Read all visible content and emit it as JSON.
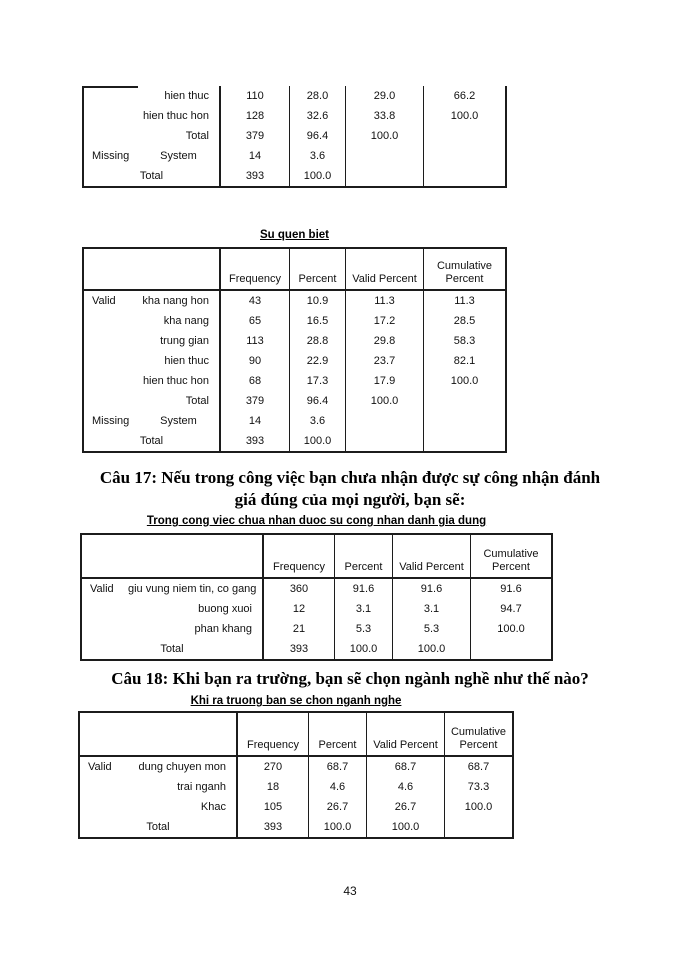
{
  "page_number": "43",
  "column_headers": [
    "Frequency",
    "Percent",
    "Valid Percent",
    "Cumulative Percent"
  ],
  "headings": {
    "cau17_line1": "Câu 17: Nếu trong công việc bạn chưa nhận được sự công nhận đánh",
    "cau17_line2": "giá đúng của mọi người, bạn sẽ:",
    "cau18": "Câu 18: Khi bạn ra trường, bạn sẽ chọn ngành nghề như thế nào?"
  },
  "tables": [
    {
      "title": "",
      "rows": [
        {
          "group": "",
          "label": "hien thuc",
          "values": [
            "110",
            "28.0",
            "29.0",
            "66.2"
          ]
        },
        {
          "group": "",
          "label": "hien thuc hon",
          "values": [
            "128",
            "32.6",
            "33.8",
            "100.0"
          ]
        },
        {
          "group": "",
          "label": "Total",
          "values": [
            "379",
            "96.4",
            "100.0",
            ""
          ]
        },
        {
          "group": "Missing",
          "label": "System",
          "center_label": true,
          "values": [
            "14",
            "3.6",
            "",
            ""
          ]
        },
        {
          "group": "",
          "label": "Total",
          "span": true,
          "values": [
            "393",
            "100.0",
            "",
            ""
          ]
        }
      ]
    },
    {
      "title": "Su quen biet",
      "rows": [
        {
          "group": "Valid",
          "label": "kha nang hon",
          "values": [
            "43",
            "10.9",
            "11.3",
            "11.3"
          ]
        },
        {
          "group": "",
          "label": "kha nang",
          "values": [
            "65",
            "16.5",
            "17.2",
            "28.5"
          ]
        },
        {
          "group": "",
          "label": "trung gian",
          "values": [
            "113",
            "28.8",
            "29.8",
            "58.3"
          ]
        },
        {
          "group": "",
          "label": "hien thuc",
          "values": [
            "90",
            "22.9",
            "23.7",
            "82.1"
          ]
        },
        {
          "group": "",
          "label": "hien thuc hon",
          "values": [
            "68",
            "17.3",
            "17.9",
            "100.0"
          ]
        },
        {
          "group": "",
          "label": "Total",
          "values": [
            "379",
            "96.4",
            "100.0",
            ""
          ]
        },
        {
          "group": "Missing",
          "label": "System",
          "center_label": true,
          "values": [
            "14",
            "3.6",
            "",
            ""
          ]
        },
        {
          "group": "",
          "label": "Total",
          "span": true,
          "values": [
            "393",
            "100.0",
            "",
            ""
          ]
        }
      ]
    },
    {
      "title": "Trong cong viec chua nhan duoc su cong nhan danh gia dung",
      "rows": [
        {
          "group": "Valid",
          "label": "giu vung niem tin, co gang",
          "values": [
            "360",
            "91.6",
            "91.6",
            "91.6"
          ]
        },
        {
          "group": "",
          "label": "buong xuoi",
          "values": [
            "12",
            "3.1",
            "3.1",
            "94.7"
          ]
        },
        {
          "group": "",
          "label": "phan khang",
          "values": [
            "21",
            "5.3",
            "5.3",
            "100.0"
          ]
        },
        {
          "group": "",
          "label": "Total",
          "span": true,
          "values": [
            "393",
            "100.0",
            "100.0",
            ""
          ]
        }
      ]
    },
    {
      "title": "Khi ra truong ban se chon nganh nghe",
      "rows": [
        {
          "group": "Valid",
          "label": "dung chuyen mon",
          "values": [
            "270",
            "68.7",
            "68.7",
            "68.7"
          ]
        },
        {
          "group": "",
          "label": "trai nganh",
          "values": [
            "18",
            "4.6",
            "4.6",
            "73.3"
          ]
        },
        {
          "group": "",
          "label": "Khac",
          "values": [
            "105",
            "26.7",
            "26.7",
            "100.0"
          ]
        },
        {
          "group": "",
          "label": "Total",
          "span": true,
          "values": [
            "393",
            "100.0",
            "100.0",
            ""
          ]
        }
      ]
    }
  ]
}
